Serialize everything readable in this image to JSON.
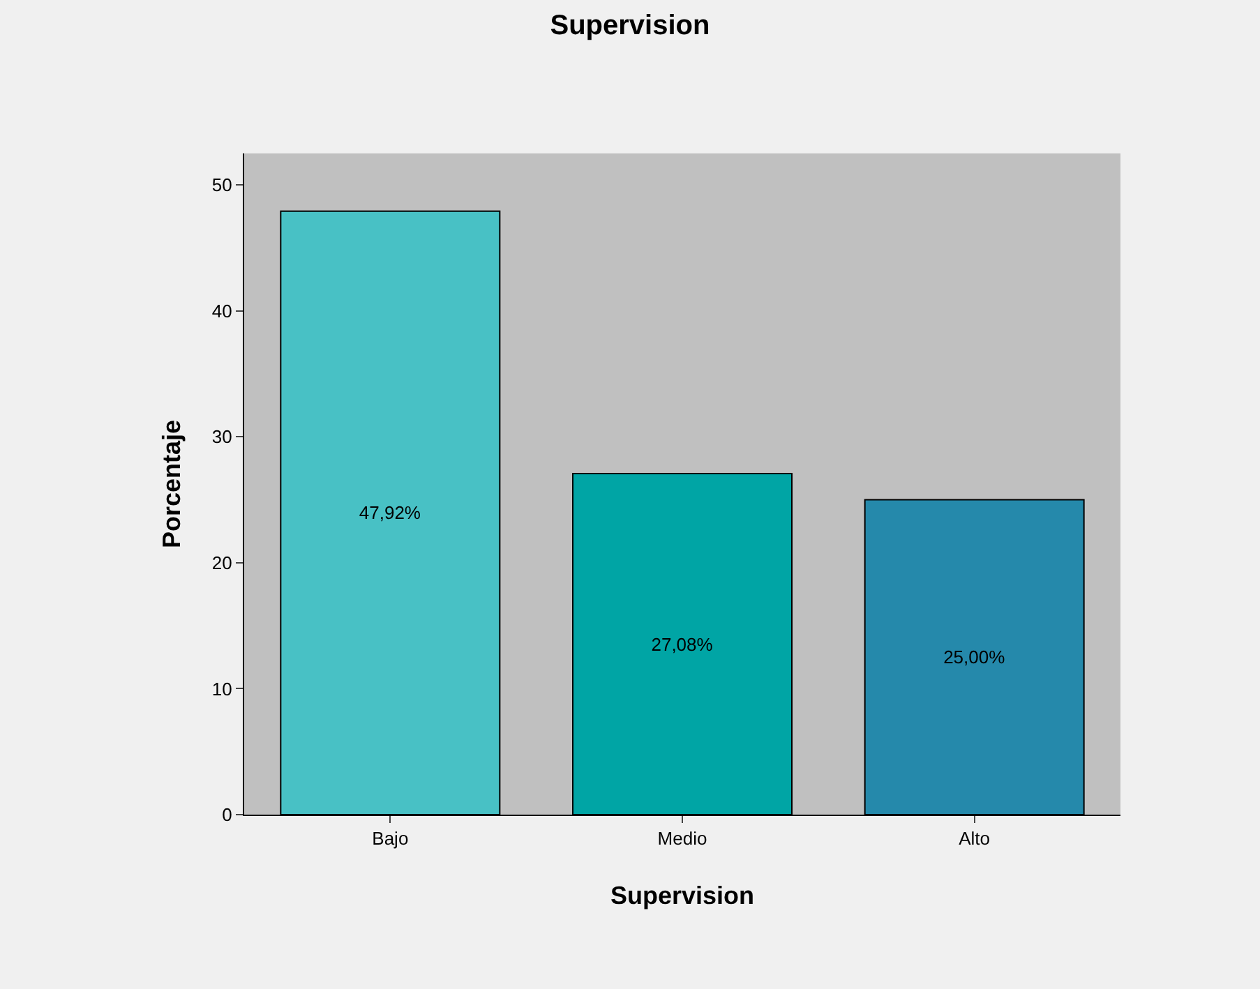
{
  "chart_data": {
    "type": "bar",
    "title": "Supervision",
    "xlabel": "Supervision",
    "ylabel": "Porcentaje",
    "categories": [
      "Bajo",
      "Medio",
      "Alto"
    ],
    "values": [
      47.92,
      27.08,
      25.0
    ],
    "colors": [
      "#48c1c5",
      "#00a5a5",
      "#2589ab"
    ],
    "value_labels": [
      "47,92%",
      "27,08%",
      "25,00%"
    ],
    "ylim": [
      0,
      52.5
    ],
    "yticks": [
      0,
      10,
      20,
      30,
      40,
      50
    ],
    "grid": false
  }
}
